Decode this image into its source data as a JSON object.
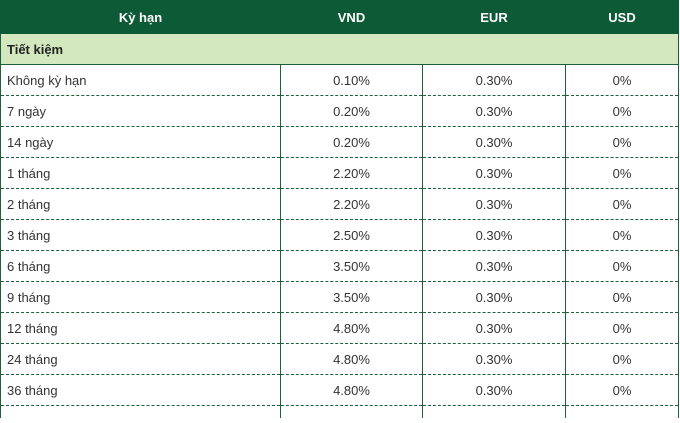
{
  "table": {
    "header": [
      "Kỳ hạn",
      "VND",
      "EUR",
      "USD"
    ],
    "section": "Tiết kiệm",
    "rows": [
      [
        "Không kỳ hạn",
        "0.10%",
        "0.30%",
        "0%"
      ],
      [
        "7 ngày",
        "0.20%",
        "0.30%",
        "0%"
      ],
      [
        "14 ngày",
        "0.20%",
        "0.30%",
        "0%"
      ],
      [
        "1 tháng",
        "2.20%",
        "0.30%",
        "0%"
      ],
      [
        "2 tháng",
        "2.20%",
        "0.30%",
        "0%"
      ],
      [
        "3 tháng",
        "2.50%",
        "0.30%",
        "0%"
      ],
      [
        "6 tháng",
        "3.50%",
        "0.30%",
        "0%"
      ],
      [
        "9 tháng",
        "3.50%",
        "0.30%",
        "0%"
      ],
      [
        "12 tháng",
        "4.80%",
        "0.30%",
        "0%"
      ],
      [
        "24 tháng",
        "4.80%",
        "0.30%",
        "0%"
      ],
      [
        "36 tháng",
        "4.80%",
        "0.30%",
        "0%"
      ]
    ]
  }
}
